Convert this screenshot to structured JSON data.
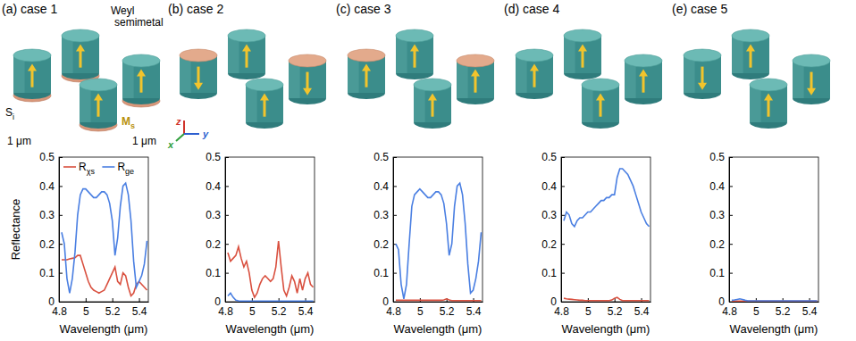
{
  "illustration": {
    "material": "Weyl semimetal",
    "substrate": "Si",
    "magnetization": "Ms",
    "period_x": "1 μm",
    "period_y": "1 μm",
    "axes": [
      "z",
      "x",
      "y"
    ]
  },
  "chart_data": [
    {
      "type": "line",
      "title": "(a) case 1",
      "x_label": "Wavelength (μm)",
      "y_label": "Reflectance",
      "x": [
        4.82,
        4.84,
        4.86,
        4.88,
        4.9,
        4.92,
        4.94,
        4.96,
        4.98,
        5.0,
        5.02,
        5.04,
        5.06,
        5.08,
        5.1,
        5.12,
        5.14,
        5.16,
        5.18,
        5.2,
        5.22,
        5.24,
        5.26,
        5.28,
        5.3,
        5.32,
        5.34,
        5.36,
        5.38,
        5.4,
        5.42,
        5.44,
        5.46
      ],
      "series": [
        {
          "name": "Rχs",
          "color": "#d9503f",
          "values": [
            0.145,
            0.145,
            0.145,
            0.148,
            0.15,
            0.152,
            0.16,
            0.16,
            0.13,
            0.1,
            0.07,
            0.05,
            0.04,
            0.035,
            0.03,
            0.035,
            0.04,
            0.06,
            0.08,
            0.1,
            0.12,
            0.07,
            0.06,
            0.1,
            0.09,
            0.05,
            0.02,
            0.03,
            0.06,
            0.07,
            0.06,
            0.05,
            0.04
          ]
        },
        {
          "name": "Rge",
          "color": "#4a7fe2",
          "values": [
            0.24,
            0.2,
            0.08,
            0.03,
            0.08,
            0.17,
            0.3,
            0.37,
            0.39,
            0.39,
            0.38,
            0.37,
            0.36,
            0.36,
            0.37,
            0.38,
            0.38,
            0.37,
            0.34,
            0.28,
            0.16,
            0.22,
            0.33,
            0.4,
            0.41,
            0.37,
            0.28,
            0.14,
            0.05,
            0.07,
            0.09,
            0.13,
            0.21
          ]
        }
      ],
      "xlim": [
        4.8,
        5.47
      ],
      "ylim": [
        0,
        0.5
      ],
      "xticks": [
        4.8,
        5,
        5.2,
        5.4
      ],
      "yticks": [
        0,
        0.1,
        0.2,
        0.3,
        0.4,
        0.5
      ],
      "legend": "top"
    },
    {
      "type": "line",
      "title": "(b) case 2",
      "x_label": "Wavelength (μm)",
      "x": [
        4.82,
        4.84,
        4.86,
        4.88,
        4.9,
        4.92,
        4.94,
        4.96,
        4.98,
        5.0,
        5.02,
        5.04,
        5.06,
        5.08,
        5.1,
        5.12,
        5.14,
        5.16,
        5.18,
        5.2,
        5.22,
        5.24,
        5.26,
        5.28,
        5.3,
        5.32,
        5.34,
        5.36,
        5.38,
        5.4,
        5.42,
        5.44,
        5.46
      ],
      "series": [
        {
          "name": "Rχs",
          "color": "#d9503f",
          "values": [
            0.17,
            0.14,
            0.15,
            0.16,
            0.19,
            0.15,
            0.12,
            0.14,
            0.1,
            0.04,
            0.015,
            0.03,
            0.06,
            0.08,
            0.09,
            0.08,
            0.07,
            0.08,
            0.12,
            0.21,
            0.12,
            0.04,
            0.02,
            0.05,
            0.09,
            0.07,
            0.03,
            0.08,
            0.04,
            0.08,
            0.1,
            0.06,
            0.05
          ]
        },
        {
          "name": "Rge",
          "color": "#4a7fe2",
          "values": [
            0.02,
            0.03,
            0.015,
            0.005,
            0.003,
            0.002,
            0.002,
            0.002,
            0.002,
            0.002,
            0.002,
            0.002,
            0.002,
            0.002,
            0.002,
            0.002,
            0.002,
            0.002,
            0.002,
            0.002,
            0.002,
            0.002,
            0.002,
            0.002,
            0.002,
            0.002,
            0.002,
            0.002,
            0.002,
            0.002,
            0.002,
            0.002,
            0.002
          ]
        }
      ],
      "xlim": [
        4.8,
        5.47
      ],
      "ylim": [
        0,
        0.5
      ],
      "xticks": [
        4.8,
        5,
        5.2,
        5.4
      ],
      "yticks": [
        0,
        0.1,
        0.2,
        0.3,
        0.4,
        0.5
      ],
      "legend": "none"
    },
    {
      "type": "line",
      "title": "(c) case 3",
      "x_label": "Wavelength (μm)",
      "x": [
        4.82,
        4.84,
        4.86,
        4.88,
        4.9,
        4.92,
        4.94,
        4.96,
        4.98,
        5.0,
        5.02,
        5.04,
        5.06,
        5.08,
        5.1,
        5.12,
        5.14,
        5.16,
        5.18,
        5.2,
        5.22,
        5.24,
        5.26,
        5.28,
        5.3,
        5.32,
        5.34,
        5.36,
        5.38,
        5.4,
        5.42,
        5.44,
        5.46
      ],
      "series": [
        {
          "name": "Rχs",
          "color": "#d9503f",
          "values": [
            0.005,
            0.005,
            0.005,
            0.005,
            0.005,
            0.005,
            0.005,
            0.005,
            0.005,
            0.005,
            0.005,
            0.005,
            0.005,
            0.005,
            0.005,
            0.005,
            0.005,
            0.005,
            0.006,
            0.01,
            0.006,
            0.004,
            0.004,
            0.004,
            0.004,
            0.004,
            0.004,
            0.004,
            0.004,
            0.004,
            0.004,
            0.004,
            0.004
          ]
        },
        {
          "name": "Rge",
          "color": "#4a7fe2",
          "values": [
            0.2,
            0.18,
            0.06,
            0.01,
            0.06,
            0.2,
            0.33,
            0.37,
            0.38,
            0.39,
            0.38,
            0.37,
            0.36,
            0.36,
            0.37,
            0.38,
            0.38,
            0.37,
            0.34,
            0.27,
            0.16,
            0.2,
            0.33,
            0.4,
            0.41,
            0.37,
            0.27,
            0.13,
            0.03,
            0.04,
            0.08,
            0.14,
            0.24
          ]
        }
      ],
      "xlim": [
        4.8,
        5.47
      ],
      "ylim": [
        0,
        0.5
      ],
      "xticks": [
        4.8,
        5,
        5.2,
        5.4
      ],
      "yticks": [
        0,
        0.1,
        0.2,
        0.3,
        0.4,
        0.5
      ],
      "legend": "none"
    },
    {
      "type": "line",
      "title": "(d) case 4",
      "x_label": "Wavelength (μm)",
      "x": [
        4.82,
        4.84,
        4.86,
        4.88,
        4.9,
        4.92,
        4.94,
        4.96,
        4.98,
        5.0,
        5.02,
        5.04,
        5.06,
        5.08,
        5.1,
        5.12,
        5.14,
        5.16,
        5.18,
        5.2,
        5.22,
        5.24,
        5.26,
        5.28,
        5.3,
        5.32,
        5.34,
        5.36,
        5.38,
        5.4,
        5.42,
        5.44,
        5.46
      ],
      "series": [
        {
          "name": "Rχs",
          "color": "#d9503f",
          "values": [
            0.012,
            0.01,
            0.009,
            0.008,
            0.007,
            0.006,
            0.005,
            0.005,
            0.004,
            0.004,
            0.004,
            0.004,
            0.004,
            0.004,
            0.004,
            0.004,
            0.004,
            0.004,
            0.006,
            0.012,
            0.015,
            0.008,
            0.004,
            0.004,
            0.004,
            0.004,
            0.004,
            0.004,
            0.004,
            0.004,
            0.004,
            0.004,
            0.004
          ]
        },
        {
          "name": "Rge",
          "color": "#4a7fe2",
          "values": [
            0.28,
            0.31,
            0.3,
            0.27,
            0.26,
            0.28,
            0.29,
            0.29,
            0.3,
            0.31,
            0.31,
            0.32,
            0.33,
            0.34,
            0.35,
            0.35,
            0.36,
            0.36,
            0.37,
            0.37,
            0.43,
            0.46,
            0.46,
            0.45,
            0.44,
            0.42,
            0.4,
            0.37,
            0.34,
            0.31,
            0.29,
            0.27,
            0.26
          ]
        }
      ],
      "xlim": [
        4.8,
        5.47
      ],
      "ylim": [
        0,
        0.5
      ],
      "xticks": [
        4.8,
        5,
        5.2,
        5.4
      ],
      "yticks": [
        0,
        0.1,
        0.2,
        0.3,
        0.4,
        0.5
      ],
      "legend": "none"
    },
    {
      "type": "line",
      "title": "(e) case 5",
      "x_label": "Wavelength (μm)",
      "x": [
        4.82,
        4.84,
        4.86,
        4.88,
        4.9,
        4.92,
        4.94,
        4.96,
        4.98,
        5.0,
        5.02,
        5.04,
        5.06,
        5.08,
        5.1,
        5.12,
        5.14,
        5.16,
        5.18,
        5.2,
        5.22,
        5.24,
        5.26,
        5.28,
        5.3,
        5.32,
        5.34,
        5.36,
        5.38,
        5.4,
        5.42,
        5.44,
        5.46
      ],
      "series": [
        {
          "name": "Rχs",
          "color": "#d9503f",
          "values": [
            0.002,
            0.002,
            0.002,
            0.002,
            0.002,
            0.002,
            0.002,
            0.002,
            0.002,
            0.002,
            0.002,
            0.002,
            0.002,
            0.002,
            0.002,
            0.002,
            0.002,
            0.002,
            0.002,
            0.002,
            0.002,
            0.002,
            0.002,
            0.002,
            0.002,
            0.002,
            0.002,
            0.002,
            0.002,
            0.002,
            0.002,
            0.002,
            0.002
          ]
        },
        {
          "name": "Rge",
          "color": "#4a7fe2",
          "values": [
            0.005,
            0.006,
            0.008,
            0.01,
            0.008,
            0.005,
            0.003,
            0.003,
            0.003,
            0.003,
            0.003,
            0.003,
            0.003,
            0.003,
            0.003,
            0.003,
            0.003,
            0.003,
            0.003,
            0.003,
            0.003,
            0.003,
            0.003,
            0.003,
            0.003,
            0.003,
            0.003,
            0.003,
            0.003,
            0.003,
            0.003,
            0.003,
            0.003
          ]
        }
      ],
      "xlim": [
        4.8,
        5.47
      ],
      "ylim": [
        0,
        0.5
      ],
      "xticks": [
        4.8,
        5,
        5.2,
        5.4
      ],
      "yticks": [
        0,
        0.1,
        0.2,
        0.3,
        0.4,
        0.5
      ],
      "legend": "none"
    }
  ]
}
